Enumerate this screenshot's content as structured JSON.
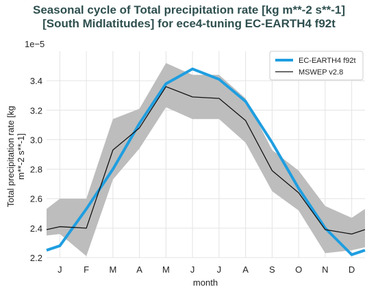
{
  "chart_data": {
    "type": "line",
    "title": "Seasonal cycle of Total precipitation rate [kg m**-2 s**-1]",
    "subtitle": "[South Midlatitudes] for ece4-tuning EC-EARTH4 f92t",
    "xlabel": "month",
    "ylabel_line1": "Total precipitation rate [kg",
    "ylabel_line2": "m**-2 s**-1]",
    "scale_label": "1e−5",
    "categories": [
      "J",
      "F",
      "M",
      "A",
      "M",
      "J",
      "J",
      "A",
      "S",
      "O",
      "N",
      "D"
    ],
    "x_extended": [
      -0.5,
      0,
      1,
      2,
      3,
      4,
      5,
      6,
      7,
      8,
      9,
      10,
      11,
      11.5
    ],
    "xlim": [
      -0.5,
      11.5
    ],
    "ylim": [
      2.2,
      3.6
    ],
    "y_unit_scale": "1e-5",
    "yticks": [
      2.2,
      2.4,
      2.6,
      2.8,
      3.0,
      3.2,
      3.4
    ],
    "ytick_labels": [
      "2.2",
      "2.4",
      "2.6",
      "2.8",
      "3.0",
      "3.2",
      "3.4"
    ],
    "series": [
      {
        "name": "EC-EARTH4 f92t",
        "color": "#1f9ee0",
        "values_extended": [
          2.25,
          2.28,
          2.53,
          2.8,
          3.11,
          3.38,
          3.48,
          3.41,
          3.26,
          2.98,
          2.67,
          2.4,
          2.22,
          2.25
        ]
      },
      {
        "name": "MSWEP v2.8",
        "color": "#111111",
        "values_extended": [
          2.39,
          2.41,
          2.4,
          2.93,
          3.08,
          3.36,
          3.29,
          3.28,
          3.13,
          2.79,
          2.64,
          2.39,
          2.36,
          2.39
        ]
      }
    ],
    "band": {
      "color": "#bdbdbd",
      "lower_extended": [
        2.35,
        2.36,
        2.21,
        2.73,
        2.94,
        3.22,
        3.14,
        3.14,
        2.98,
        2.65,
        2.52,
        2.23,
        2.25,
        2.27
      ],
      "upper_extended": [
        2.53,
        2.6,
        2.6,
        3.14,
        3.21,
        3.52,
        3.44,
        3.44,
        3.28,
        2.93,
        2.79,
        2.55,
        2.47,
        2.53
      ]
    },
    "legend_position": "top-right",
    "grid": true
  }
}
